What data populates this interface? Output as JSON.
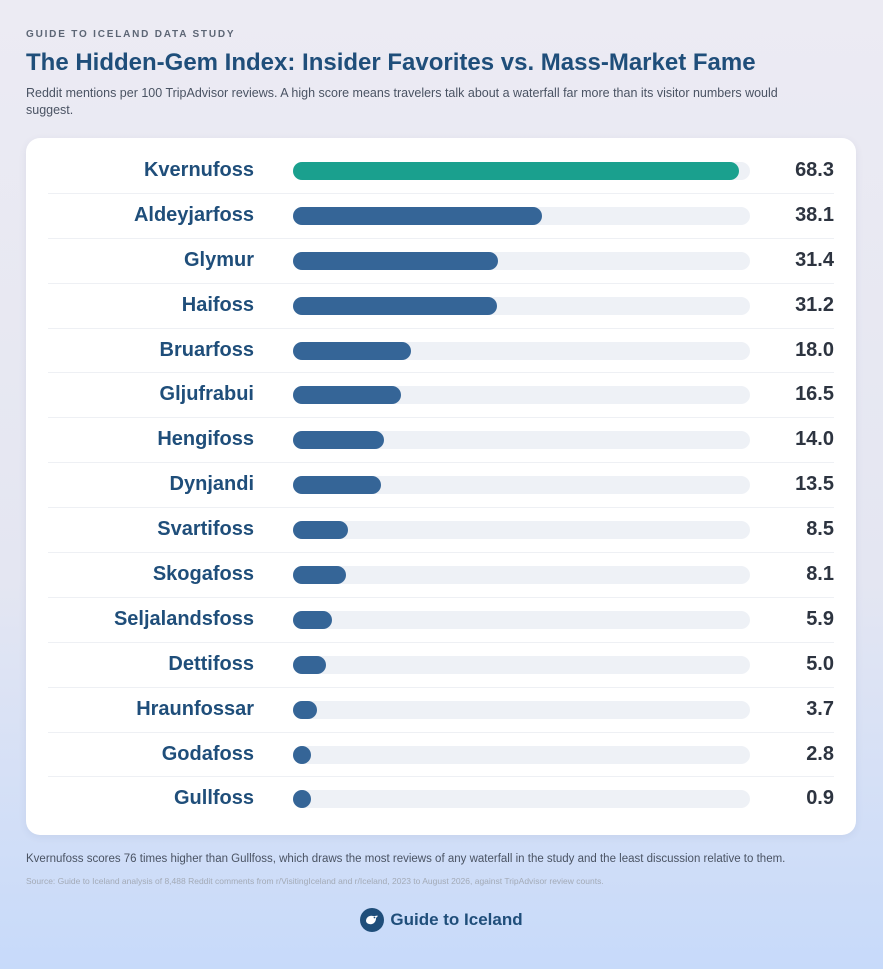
{
  "header": {
    "kicker": "GUIDE TO ICELAND DATA STUDY",
    "title": "The Hidden-Gem Index: Insider Favorites vs. Mass-Market Fame",
    "subtitle": "Reddit mentions per 100 TripAdvisor reviews. A high score means travelers talk about a waterfall far more than its visitor numbers would suggest."
  },
  "chart_data": {
    "type": "bar",
    "orientation": "horizontal",
    "title": "The Hidden-Gem Index: Insider Favorites vs. Mass-Market Fame",
    "subtitle": "Reddit mentions per 100 TripAdvisor reviews. A high score means travelers talk about a waterfall far more than its visitor numbers would suggest.",
    "categories": [
      "Kvernufoss",
      "Aldeyjarfoss",
      "Glymur",
      "Haifoss",
      "Bruarfoss",
      "Gljufrabui",
      "Hengifoss",
      "Dynjandi",
      "Svartifoss",
      "Skogafoss",
      "Seljalandsfoss",
      "Dettifoss",
      "Hraunfossar",
      "Godafoss",
      "Gullfoss"
    ],
    "values": [
      68.3,
      38.1,
      31.4,
      31.2,
      18.0,
      16.5,
      14.0,
      13.5,
      8.5,
      8.1,
      5.9,
      5.0,
      3.7,
      2.8,
      0.9
    ],
    "value_labels": [
      "68.3",
      "38.1",
      "31.4",
      "31.2",
      "18.0",
      "16.5",
      "14.0",
      "13.5",
      "8.5",
      "8.1",
      "5.9",
      "5.0",
      "3.7",
      "2.8",
      "0.9"
    ],
    "xlim": [
      0,
      70
    ],
    "grid": false,
    "colors": {
      "highlight": "#1aa08e",
      "bar": "#356597",
      "track": "#eef1f6"
    }
  },
  "footer": {
    "note": "Kvernufoss scores 76 times higher than Gullfoss, which draws the most reviews of any waterfall in the study and the least discussion relative to them.",
    "source": "Source: Guide to Iceland analysis of 8,488 Reddit comments from r/VisitingIceland and r/Iceland, 2023 to August 2026, against TripAdvisor review counts.",
    "brand": "Guide to Iceland",
    "brand_icon": "puffin-logo-icon"
  }
}
